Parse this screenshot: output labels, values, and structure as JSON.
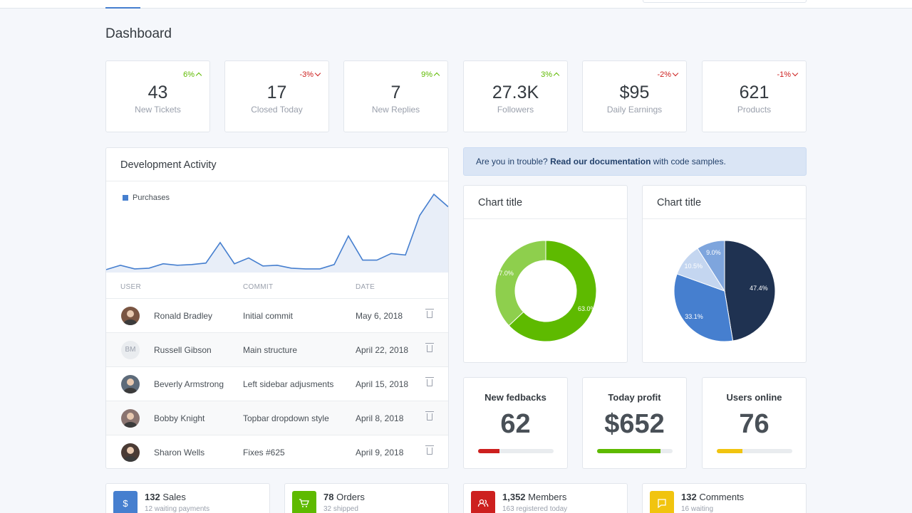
{
  "page_title": "Dashboard",
  "stats": [
    {
      "value": "43",
      "label": "New Tickets",
      "delta": "6%",
      "trend": "up"
    },
    {
      "value": "17",
      "label": "Closed Today",
      "delta": "-3%",
      "trend": "down"
    },
    {
      "value": "7",
      "label": "New Replies",
      "delta": "9%",
      "trend": "up"
    },
    {
      "value": "27.3K",
      "label": "Followers",
      "delta": "3%",
      "trend": "up"
    },
    {
      "value": "$95",
      "label": "Daily Earnings",
      "delta": "-2%",
      "trend": "down"
    },
    {
      "value": "621",
      "label": "Products",
      "delta": "-1%",
      "trend": "down"
    }
  ],
  "dev_activity": {
    "title": "Development Activity",
    "legend": "Purchases",
    "columns": {
      "user": "USER",
      "commit": "COMMIT",
      "date": "DATE"
    },
    "rows": [
      {
        "user": "Ronald Bradley",
        "commit": "Initial commit",
        "date": "May 6, 2018",
        "avatar": "photo"
      },
      {
        "user": "Russell Gibson",
        "commit": "Main structure",
        "date": "April 22, 2018",
        "avatar": "BM"
      },
      {
        "user": "Beverly Armstrong",
        "commit": "Left sidebar adjusments",
        "date": "April 15, 2018",
        "avatar": "photo"
      },
      {
        "user": "Bobby Knight",
        "commit": "Topbar dropdown style",
        "date": "April 8, 2018",
        "avatar": "photo"
      },
      {
        "user": "Sharon Wells",
        "commit": "Fixes #625",
        "date": "April 9, 2018",
        "avatar": "photo"
      }
    ]
  },
  "chart_data": [
    {
      "type": "area",
      "series": [
        {
          "name": "Purchases",
          "values": [
            2,
            8,
            3,
            4,
            10,
            8,
            9,
            11,
            39,
            10,
            18,
            7,
            8,
            4,
            3,
            3,
            9,
            48,
            15,
            15,
            24,
            22,
            76,
            105,
            88
          ]
        }
      ],
      "ylim": [
        0,
        110
      ],
      "grid": false
    },
    {
      "type": "pie",
      "title": "Chart title",
      "donut": true,
      "slices": [
        {
          "label": "63.0%",
          "value": 63.0,
          "color": "#5eba00"
        },
        {
          "label": "37.0%",
          "value": 37.0,
          "color": "#8ecf4d"
        }
      ]
    },
    {
      "type": "pie",
      "title": "Chart title",
      "donut": false,
      "slices": [
        {
          "label": "47.4%",
          "value": 47.4,
          "color": "#1f3251"
        },
        {
          "label": "33.1%",
          "value": 33.1,
          "color": "#467fcf"
        },
        {
          "label": "10.5%",
          "value": 10.5,
          "color": "#c4d6f0"
        },
        {
          "label": "9.0%",
          "value": 9.0,
          "color": "#7ea5dd"
        }
      ]
    }
  ],
  "alert": {
    "prefix": "Are you in trouble?",
    "link": "Read our documentation",
    "suffix": "with code samples."
  },
  "metrics": [
    {
      "label": "New fedbacks",
      "value": "62",
      "progress": 0.28,
      "color": "#cd201f"
    },
    {
      "label": "Today profit",
      "value": "$652",
      "progress": 0.84,
      "color": "#5eba00"
    },
    {
      "label": "Users online",
      "value": "76",
      "progress": 0.34,
      "color": "#f1c40f"
    }
  ],
  "mini_cards": [
    {
      "count": "132",
      "label": "Sales",
      "sub": "12 waiting payments",
      "icon": "dollar-icon",
      "color": "#467fcf"
    },
    {
      "count": "78",
      "label": "Orders",
      "sub": "32 shipped",
      "icon": "cart-icon",
      "color": "#5eba00"
    },
    {
      "count": "1,352",
      "label": "Members",
      "sub": "163 registered today",
      "icon": "users-icon",
      "color": "#cd201f"
    },
    {
      "count": "132",
      "label": "Comments",
      "sub": "16 waiting",
      "icon": "message-icon",
      "color": "#f1c40f"
    }
  ]
}
